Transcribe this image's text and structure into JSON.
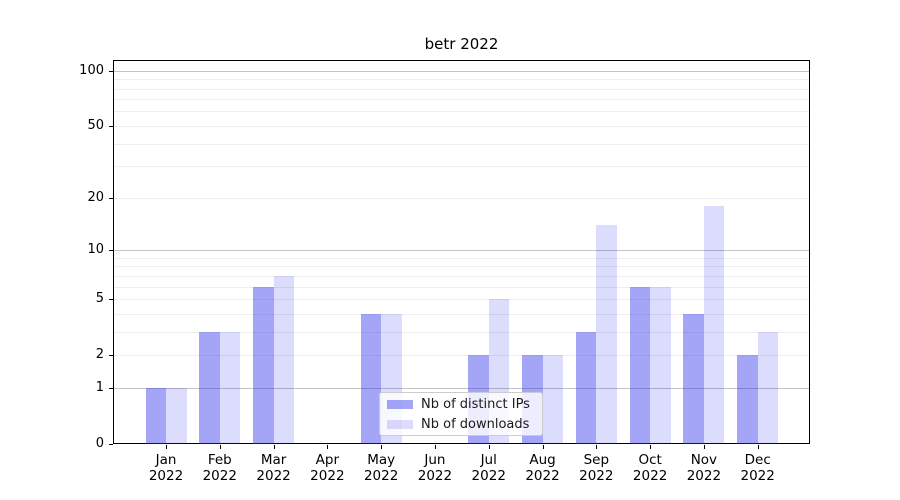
{
  "title": "betr 2022",
  "chart_data": {
    "type": "bar",
    "title": "betr 2022",
    "categories": [
      "Jan",
      "Feb",
      "Mar",
      "Apr",
      "May",
      "Jun",
      "Jul",
      "Aug",
      "Sep",
      "Oct",
      "Nov",
      "Dec"
    ],
    "x_year": "2022",
    "series": [
      {
        "name": "Nb of distinct IPs",
        "color_hex": "#a6a6f7",
        "color_rgba": "rgba(40,40,235,0.42)",
        "values": [
          1,
          3,
          6,
          0,
          4,
          0,
          2,
          2,
          3,
          6,
          4,
          2
        ]
      },
      {
        "name": "Nb of downloads",
        "color_hex": "#dcdcfa",
        "color_rgba": "rgba(40,40,235,0.16)",
        "values": [
          1,
          3,
          7,
          0,
          4,
          0,
          5,
          2,
          14,
          6,
          18,
          3
        ]
      }
    ],
    "yticks": [
      0,
      1,
      2,
      5,
      10,
      20,
      50,
      100
    ],
    "ylim": [
      0,
      114
    ],
    "yscale": "log1p",
    "grid": "both",
    "grid_minor_values": [
      2,
      3,
      4,
      5,
      6,
      7,
      8,
      9,
      20,
      30,
      40,
      50,
      60,
      70,
      80,
      90
    ],
    "grid_major_values": [
      1,
      10,
      100
    ],
    "legend_position": "lower center",
    "xlabel": "",
    "ylabel": ""
  }
}
